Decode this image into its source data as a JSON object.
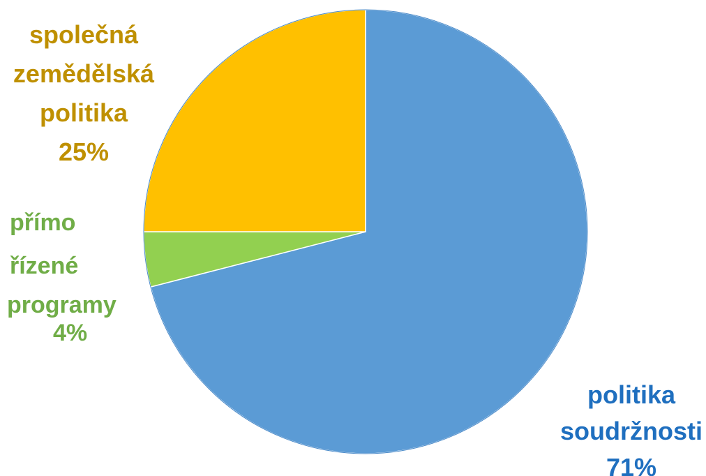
{
  "chart_data": {
    "type": "pie",
    "slices": [
      {
        "label_lines": [
          "politika",
          "soudržnosti"
        ],
        "value": 71,
        "value_label": "71%",
        "color": "#5B9BD5",
        "label_color": "#1F6FBF"
      },
      {
        "label_lines": [
          "přímo",
          "řízené",
          "programy"
        ],
        "value": 4,
        "value_label": "4%",
        "color": "#92D050",
        "label_color": "#70AD47"
      },
      {
        "label_lines": [
          "společná",
          "zemědělská",
          "politika"
        ],
        "value": 25,
        "value_label": "25%",
        "color": "#FFC000",
        "label_color": "#BF9000"
      }
    ],
    "start_angle_deg": 0,
    "direction": "clockwise",
    "legend": "none"
  }
}
